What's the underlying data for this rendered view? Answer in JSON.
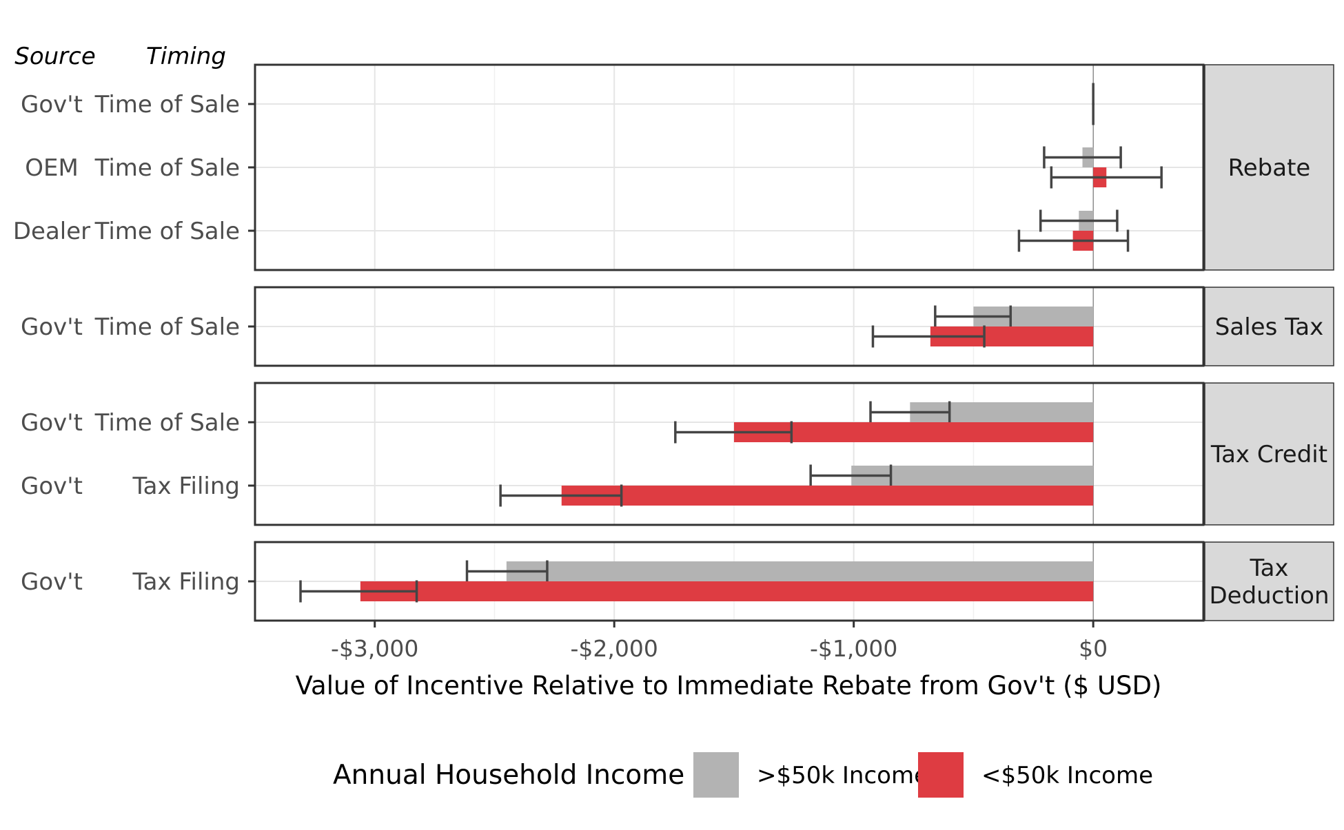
{
  "header": {
    "source_label": "Source",
    "timing_label": "Timing"
  },
  "chart_data": {
    "type": "bar",
    "orientation": "horizontal",
    "xlabel": "Value of Incentive Relative to Immediate Rebate from Gov't ($ USD)",
    "xlim": [
      -3500,
      460
    ],
    "x_ticks": [
      -3000,
      -2000,
      -1000,
      0
    ],
    "x_tick_labels": [
      "-$3,000",
      "-$2,000",
      "-$1,000",
      "$0"
    ],
    "grid": true,
    "colors": {
      ">$50k Income": "#b3b3b3",
      "<$50k Income": "#de3c42"
    },
    "legend": {
      "title": "Annual Household Income",
      "position": "bottom",
      "items": [
        {
          "label": ">$50k Income",
          "color": "#b3b3b3"
        },
        {
          "label": "<$50k Income",
          "color": "#de3c42"
        }
      ]
    },
    "panels": [
      {
        "label": "Rebate",
        "rows": [
          {
            "source": "Gov't",
            "timing": "Time of Sale",
            "bars": [
              {
                "group": ">$50k Income",
                "value": 0,
                "ci": [
                  0,
                  0
                ]
              },
              {
                "group": "<$50k Income",
                "value": 0,
                "ci": [
                  0,
                  0
                ]
              }
            ]
          },
          {
            "source": "OEM",
            "timing": "Time of Sale",
            "bars": [
              {
                "group": ">$50k Income",
                "value": -45,
                "ci": [
                  -205,
                  115
                ]
              },
              {
                "group": "<$50k Income",
                "value": 55,
                "ci": [
                  -175,
                  285
                ]
              }
            ]
          },
          {
            "source": "Dealer",
            "timing": "Time of Sale",
            "bars": [
              {
                "group": ">$50k Income",
                "value": -60,
                "ci": [
                  -220,
                  100
                ]
              },
              {
                "group": "<$50k Income",
                "value": -85,
                "ci": [
                  -310,
                  145
                ]
              }
            ]
          }
        ]
      },
      {
        "label": "Sales Tax",
        "rows": [
          {
            "source": "Gov't",
            "timing": "Time of Sale",
            "bars": [
              {
                "group": ">$50k Income",
                "value": -500,
                "ci": [
                  -660,
                  -345
                ]
              },
              {
                "group": "<$50k Income",
                "value": -680,
                "ci": [
                  -920,
                  -455
                ]
              }
            ]
          }
        ]
      },
      {
        "label": "Tax Credit",
        "rows": [
          {
            "source": "Gov't",
            "timing": "Time of Sale",
            "bars": [
              {
                "group": ">$50k Income",
                "value": -765,
                "ci": [
                  -930,
                  -600
                ]
              },
              {
                "group": "<$50k Income",
                "value": -1500,
                "ci": [
                  -1745,
                  -1260
                ]
              }
            ]
          },
          {
            "source": "Gov't",
            "timing": "Tax Filing",
            "bars": [
              {
                "group": ">$50k Income",
                "value": -1010,
                "ci": [
                  -1180,
                  -845
                ]
              },
              {
                "group": "<$50k Income",
                "value": -2220,
                "ci": [
                  -2475,
                  -1970
                ]
              }
            ]
          }
        ]
      },
      {
        "label": "Tax Deduction",
        "label_lines": [
          "Tax",
          "Deduction"
        ],
        "rows": [
          {
            "source": "Gov't",
            "timing": "Tax Filing",
            "bars": [
              {
                "group": ">$50k Income",
                "value": -2450,
                "ci": [
                  -2615,
                  -2280
                ]
              },
              {
                "group": "<$50k Income",
                "value": -3060,
                "ci": [
                  -3310,
                  -2825
                ]
              }
            ]
          }
        ]
      }
    ]
  }
}
